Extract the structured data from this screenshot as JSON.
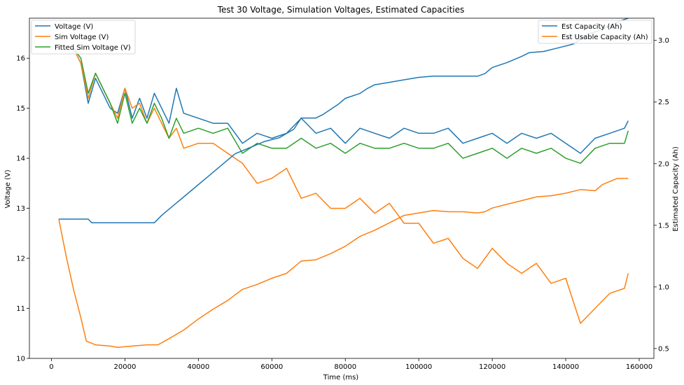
{
  "chart_data": {
    "type": "line",
    "title": "Test 30 Voltage, Simulation Voltages, Estimated Capacities",
    "xlabel": "Time (ms)",
    "ylabel_left": "Voltage (V)",
    "ylabel_right": "Estimated Capacity (Ah)",
    "xlim": [
      -6000,
      164000
    ],
    "ylim_left": [
      10,
      16.8
    ],
    "ylim_right": [
      0.42,
      3.18
    ],
    "x_ticks": [
      0,
      20000,
      40000,
      60000,
      80000,
      100000,
      120000,
      140000,
      160000
    ],
    "y_left_ticks": [
      10,
      11,
      12,
      13,
      14,
      15,
      16
    ],
    "y_right_ticks": [
      0.5,
      1.0,
      1.5,
      2.0,
      2.5,
      3.0
    ],
    "grid": false,
    "legend_left": {
      "placement": "upper-left",
      "entries": [
        "Voltage (V)",
        "Sim Voltage (V)",
        "Fitted Sim Voltage (V)"
      ]
    },
    "legend_right": {
      "placement": "upper-right",
      "entries": [
        "Est Capacity (Ah)",
        "Est Usable Capacity (Ah)"
      ]
    },
    "colors": {
      "blue": "#1f77b4",
      "orange": "#ff7f0e",
      "green": "#2ca02c"
    },
    "series": [
      {
        "name": "Voltage (V)",
        "axis": "left",
        "color": "#1f77b4",
        "x": [
          6000,
          8000,
          10000,
          12000,
          14000,
          16000,
          18000,
          20000,
          22000,
          24000,
          26000,
          28000,
          30000,
          32000,
          34000,
          36000,
          40000,
          44000,
          48000,
          52000,
          56000,
          60000,
          64000,
          68000,
          72000,
          76000,
          80000,
          84000,
          88000,
          92000,
          96000,
          100000,
          104000,
          108000,
          112000,
          116000,
          120000,
          124000,
          128000,
          132000,
          136000,
          140000,
          144000,
          148000,
          152000,
          156000,
          157000
        ],
        "y": [
          16.2,
          15.9,
          15.1,
          15.6,
          15.3,
          15.0,
          14.9,
          15.4,
          14.8,
          15.2,
          14.8,
          15.3,
          15.0,
          14.7,
          15.4,
          14.9,
          14.8,
          14.7,
          14.7,
          14.3,
          14.5,
          14.4,
          14.5,
          14.8,
          14.5,
          14.6,
          14.3,
          14.6,
          14.5,
          14.4,
          14.6,
          14.5,
          14.5,
          14.6,
          14.3,
          14.4,
          14.5,
          14.3,
          14.5,
          14.4,
          14.5,
          14.3,
          14.1,
          14.4,
          14.5,
          14.6,
          14.75
        ]
      },
      {
        "name": "Sim Voltage (V)",
        "axis": "left",
        "color": "#ff7f0e",
        "x": [
          6000,
          8000,
          10000,
          12000,
          14000,
          16000,
          18000,
          20000,
          22000,
          24000,
          26000,
          28000,
          30000,
          32000,
          34000,
          36000,
          40000,
          44000,
          48000,
          52000,
          56000,
          60000,
          64000,
          68000,
          72000,
          76000,
          80000,
          84000,
          88000,
          92000,
          96000,
          100000,
          104000,
          108000,
          112000,
          116000,
          120000,
          124000,
          128000,
          132000,
          136000,
          140000,
          144000,
          148000,
          152000,
          156000,
          157000
        ],
        "y": [
          16.2,
          15.9,
          15.2,
          15.7,
          15.4,
          15.1,
          14.8,
          15.4,
          15.0,
          15.1,
          14.7,
          15.0,
          14.7,
          14.4,
          14.6,
          14.2,
          14.3,
          14.3,
          14.1,
          13.9,
          13.5,
          13.6,
          13.8,
          13.2,
          13.3,
          13.0,
          13.0,
          13.2,
          12.9,
          13.1,
          12.7,
          12.7,
          12.3,
          12.4,
          12.0,
          11.8,
          12.2,
          11.9,
          11.7,
          11.9,
          11.5,
          11.6,
          10.7,
          11.0,
          11.3,
          11.4,
          11.7
        ]
      },
      {
        "name": "Fitted Sim Voltage (V)",
        "axis": "left",
        "color": "#2ca02c",
        "x": [
          6000,
          8000,
          10000,
          12000,
          14000,
          16000,
          18000,
          20000,
          22000,
          24000,
          26000,
          28000,
          30000,
          32000,
          34000,
          36000,
          40000,
          44000,
          48000,
          52000,
          56000,
          60000,
          64000,
          68000,
          72000,
          76000,
          80000,
          84000,
          88000,
          92000,
          96000,
          100000,
          104000,
          108000,
          112000,
          116000,
          120000,
          124000,
          128000,
          132000,
          136000,
          140000,
          144000,
          148000,
          152000,
          156000,
          157000
        ],
        "y": [
          16.2,
          16.0,
          15.3,
          15.7,
          15.4,
          15.1,
          14.7,
          15.3,
          14.7,
          15.0,
          14.7,
          15.1,
          14.8,
          14.4,
          14.8,
          14.5,
          14.6,
          14.5,
          14.6,
          14.1,
          14.3,
          14.2,
          14.2,
          14.4,
          14.2,
          14.3,
          14.1,
          14.3,
          14.2,
          14.2,
          14.3,
          14.2,
          14.2,
          14.3,
          14.0,
          14.1,
          14.2,
          14.0,
          14.2,
          14.1,
          14.2,
          14.0,
          13.9,
          14.2,
          14.3,
          14.3,
          14.55
        ]
      },
      {
        "name": "Est Capacity (Ah)",
        "axis": "right",
        "color": "#1f77b4",
        "x": [
          2000,
          10000,
          11000,
          28000,
          30000,
          34000,
          38000,
          42000,
          46000,
          50000,
          54000,
          58000,
          62000,
          66000,
          68000,
          72000,
          74000,
          76000,
          78000,
          80000,
          84000,
          86000,
          88000,
          92000,
          96000,
          100000,
          104000,
          108000,
          112000,
          116000,
          118000,
          120000,
          124000,
          128000,
          130000,
          134000,
          138000,
          142000,
          146000,
          150000,
          155000,
          157000
        ],
        "y": [
          1.55,
          1.55,
          1.52,
          1.52,
          1.58,
          1.68,
          1.78,
          1.88,
          1.98,
          2.08,
          2.13,
          2.18,
          2.21,
          2.28,
          2.37,
          2.37,
          2.4,
          2.44,
          2.48,
          2.53,
          2.57,
          2.61,
          2.64,
          2.66,
          2.68,
          2.7,
          2.71,
          2.71,
          2.71,
          2.71,
          2.73,
          2.78,
          2.82,
          2.87,
          2.9,
          2.91,
          2.94,
          2.97,
          3.05,
          3.09,
          3.16,
          3.18
        ]
      },
      {
        "name": "Est Usable Capacity (Ah)",
        "axis": "right",
        "color": "#ff7f0e",
        "x": [
          2000,
          4000,
          6000,
          8000,
          9500,
          12000,
          16000,
          18000,
          22000,
          26000,
          29000,
          32000,
          36000,
          40000,
          44000,
          48000,
          52000,
          56000,
          60000,
          64000,
          66000,
          68000,
          72000,
          76000,
          80000,
          84000,
          88000,
          92000,
          96000,
          100000,
          104000,
          108000,
          112000,
          116000,
          118000,
          120000,
          124000,
          128000,
          132000,
          136000,
          140000,
          144000,
          148000,
          150000,
          154000,
          157000
        ],
        "y": [
          1.55,
          1.25,
          0.98,
          0.75,
          0.56,
          0.53,
          0.52,
          0.51,
          0.52,
          0.53,
          0.53,
          0.58,
          0.65,
          0.74,
          0.82,
          0.89,
          0.98,
          1.02,
          1.07,
          1.11,
          1.16,
          1.21,
          1.22,
          1.27,
          1.33,
          1.41,
          1.46,
          1.52,
          1.58,
          1.6,
          1.62,
          1.61,
          1.61,
          1.6,
          1.61,
          1.64,
          1.67,
          1.7,
          1.73,
          1.74,
          1.76,
          1.79,
          1.78,
          1.83,
          1.88,
          1.88
        ]
      }
    ]
  }
}
